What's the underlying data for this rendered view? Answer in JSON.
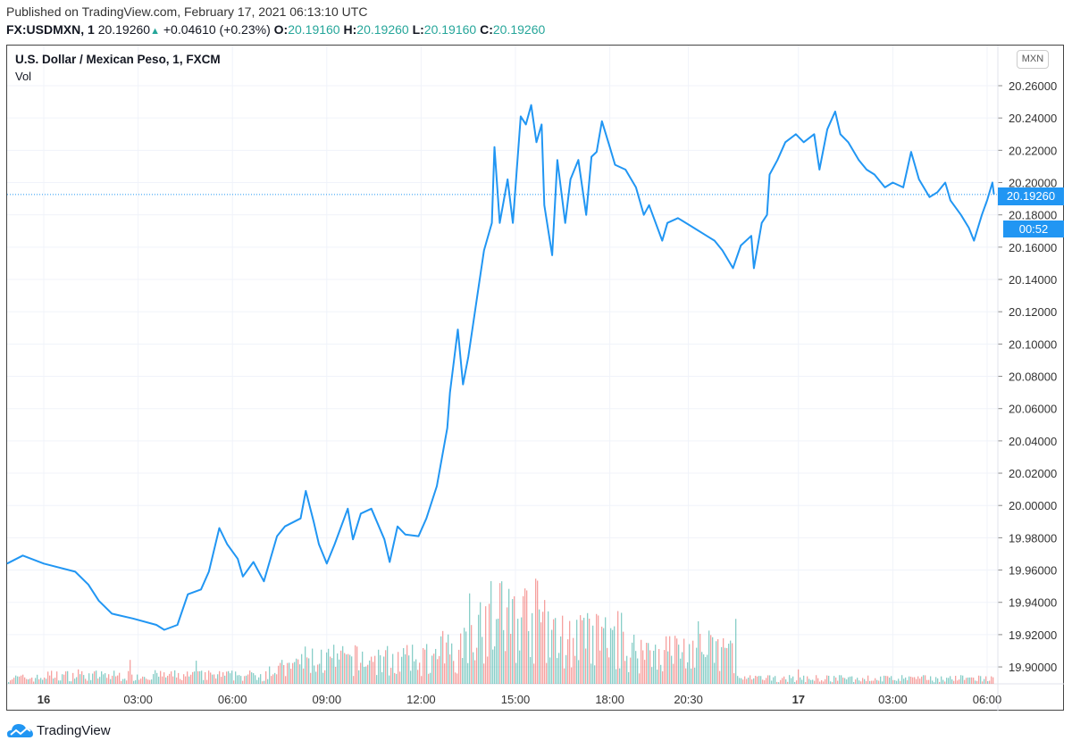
{
  "header": {
    "published": "Published on TradingView.com, February 17, 2021 06:13:10 UTC",
    "symbol": "FX:USDMXN, 1",
    "last": "20.19260",
    "change": "+0.04610 (+0.23%)",
    "o_label": "O:",
    "o": "20.19160",
    "h_label": "H:",
    "h": "20.19260",
    "l_label": "L:",
    "l": "20.19160",
    "c_label": "C:",
    "c": "20.19260"
  },
  "legend": {
    "title": "U.S. Dollar / Mexican Peso, 1, FXCM",
    "volume": "Vol"
  },
  "currency_badge": "MXN",
  "price_label": "20.19260",
  "countdown": "00:52",
  "footer": {
    "brand": "TradingView"
  },
  "colors": {
    "line": "#2196f3",
    "up": "#26a69a",
    "down": "#ef5350",
    "grid": "#f0f3fa"
  },
  "chart_data": {
    "type": "line",
    "title": "U.S. Dollar / Mexican Peso, 1, FXCM",
    "ylim": [
      19.89,
      20.28
    ],
    "yticks": [
      "20.26000",
      "20.24000",
      "20.22000",
      "20.20000",
      "20.18000",
      "20.16000",
      "20.14000",
      "20.12000",
      "20.10000",
      "20.08000",
      "20.06000",
      "20.04000",
      "20.02000",
      "20.00000",
      "19.98000",
      "19.96000",
      "19.94000",
      "19.92000",
      "19.90000"
    ],
    "xticks": [
      {
        "t": "16 00:00",
        "label": "16"
      },
      {
        "t": "16 03:00",
        "label": "03:00"
      },
      {
        "t": "16 06:00",
        "label": "06:00"
      },
      {
        "t": "16 09:00",
        "label": "09:00"
      },
      {
        "t": "16 12:00",
        "label": "12:00"
      },
      {
        "t": "16 15:00",
        "label": "15:00"
      },
      {
        "t": "16 18:00",
        "label": "18:00"
      },
      {
        "t": "16 20:30",
        "label": "20:30"
      },
      {
        "t": "17 00:00",
        "label": "17"
      },
      {
        "t": "17 03:00",
        "label": "03:00"
      },
      {
        "t": "17 06:00",
        "label": "06:00"
      }
    ],
    "grid": true,
    "series": [
      {
        "values": [
          [
            "15 22:50",
            19.964
          ],
          [
            "15 23:20",
            19.969
          ],
          [
            "16 00:00",
            19.964
          ],
          [
            "16 01:00",
            19.959
          ],
          [
            "16 01:25",
            19.951
          ],
          [
            "16 01:45",
            19.941
          ],
          [
            "16 02:10",
            19.933
          ],
          [
            "16 02:50",
            19.93
          ],
          [
            "16 03:35",
            19.926
          ],
          [
            "16 03:50",
            19.923
          ],
          [
            "16 04:15",
            19.926
          ],
          [
            "16 04:35",
            19.945
          ],
          [
            "16 05:00",
            19.948
          ],
          [
            "16 05:15",
            19.959
          ],
          [
            "16 05:35",
            19.986
          ],
          [
            "16 05:50",
            19.976
          ],
          [
            "16 06:10",
            19.967
          ],
          [
            "16 06:20",
            19.956
          ],
          [
            "16 06:40",
            19.965
          ],
          [
            "16 07:00",
            19.953
          ],
          [
            "16 07:25",
            19.981
          ],
          [
            "16 07:40",
            19.987
          ],
          [
            "16 08:10",
            19.992
          ],
          [
            "16 08:20",
            20.009
          ],
          [
            "16 08:35",
            19.99
          ],
          [
            "16 08:45",
            19.976
          ],
          [
            "16 09:00",
            19.964
          ],
          [
            "16 09:15",
            19.976
          ],
          [
            "16 09:40",
            19.998
          ],
          [
            "16 09:50",
            19.979
          ],
          [
            "16 10:05",
            19.995
          ],
          [
            "16 10:25",
            19.998
          ],
          [
            "16 10:50",
            19.979
          ],
          [
            "16 11:00",
            19.965
          ],
          [
            "16 11:15",
            19.987
          ],
          [
            "16 11:30",
            19.982
          ],
          [
            "16 11:55",
            19.981
          ],
          [
            "16 12:10",
            19.992
          ],
          [
            "16 12:30",
            20.012
          ],
          [
            "16 12:50",
            20.048
          ],
          [
            "16 12:55",
            20.07
          ],
          [
            "16 13:10",
            20.109
          ],
          [
            "16 13:20",
            20.075
          ],
          [
            "16 13:30",
            20.092
          ],
          [
            "16 13:50",
            20.136
          ],
          [
            "16 14:00",
            20.158
          ],
          [
            "16 14:15",
            20.175
          ],
          [
            "16 14:20",
            20.222
          ],
          [
            "16 14:30",
            20.175
          ],
          [
            "16 14:45",
            20.202
          ],
          [
            "16 14:55",
            20.175
          ],
          [
            "16 15:10",
            20.241
          ],
          [
            "16 15:20",
            20.236
          ],
          [
            "16 15:30",
            20.248
          ],
          [
            "16 15:40",
            20.225
          ],
          [
            "16 15:50",
            20.236
          ],
          [
            "16 15:55",
            20.186
          ],
          [
            "16 16:10",
            20.155
          ],
          [
            "16 16:20",
            20.214
          ],
          [
            "16 16:35",
            20.175
          ],
          [
            "16 16:45",
            20.202
          ],
          [
            "16 17:00",
            20.214
          ],
          [
            "16 17:15",
            20.18
          ],
          [
            "16 17:25",
            20.216
          ],
          [
            "16 17:35",
            20.219
          ],
          [
            "16 17:45",
            20.238
          ],
          [
            "16 18:00",
            20.222
          ],
          [
            "16 18:10",
            20.211
          ],
          [
            "16 18:30",
            20.208
          ],
          [
            "16 18:50",
            20.197
          ],
          [
            "16 19:05",
            20.18
          ],
          [
            "16 19:15",
            20.186
          ],
          [
            "16 19:40",
            20.164
          ],
          [
            "16 19:50",
            20.175
          ],
          [
            "16 20:10",
            20.178
          ],
          [
            "16 20:40",
            20.172
          ],
          [
            "16 21:05",
            20.167
          ],
          [
            "16 21:20",
            20.164
          ],
          [
            "16 21:35",
            20.158
          ],
          [
            "16 21:55",
            20.147
          ],
          [
            "16 22:10",
            20.161
          ],
          [
            "16 22:30",
            20.167
          ],
          [
            "16 22:35",
            20.147
          ],
          [
            "16 22:50",
            20.175
          ],
          [
            "16 23:00",
            20.18
          ],
          [
            "16 23:05",
            20.205
          ],
          [
            "16 23:20",
            20.214
          ],
          [
            "16 23:35",
            20.225
          ],
          [
            "16 23:55",
            20.23
          ],
          [
            "17 00:10",
            20.225
          ],
          [
            "17 00:30",
            20.23
          ],
          [
            "17 00:40",
            20.208
          ],
          [
            "17 00:55",
            20.233
          ],
          [
            "17 01:10",
            20.244
          ],
          [
            "17 01:20",
            20.23
          ],
          [
            "17 01:35",
            20.225
          ],
          [
            "17 01:55",
            20.214
          ],
          [
            "17 02:10",
            20.208
          ],
          [
            "17 02:25",
            20.205
          ],
          [
            "17 02:45",
            20.197
          ],
          [
            "17 03:00",
            20.2
          ],
          [
            "17 03:20",
            20.197
          ],
          [
            "17 03:35",
            20.219
          ],
          [
            "17 03:50",
            20.202
          ],
          [
            "17 04:10",
            20.191
          ],
          [
            "17 04:25",
            20.194
          ],
          [
            "17 04:40",
            20.2
          ],
          [
            "17 04:50",
            20.189
          ],
          [
            "17 05:10",
            20.18
          ],
          [
            "17 05:25",
            20.172
          ],
          [
            "17 05:35",
            20.164
          ],
          [
            "17 05:50",
            20.18
          ],
          [
            "17 06:00",
            20.189
          ],
          [
            "17 06:10",
            20.2
          ],
          [
            "17 06:13",
            20.1926
          ]
        ]
      }
    ],
    "last_value": 20.1926
  }
}
